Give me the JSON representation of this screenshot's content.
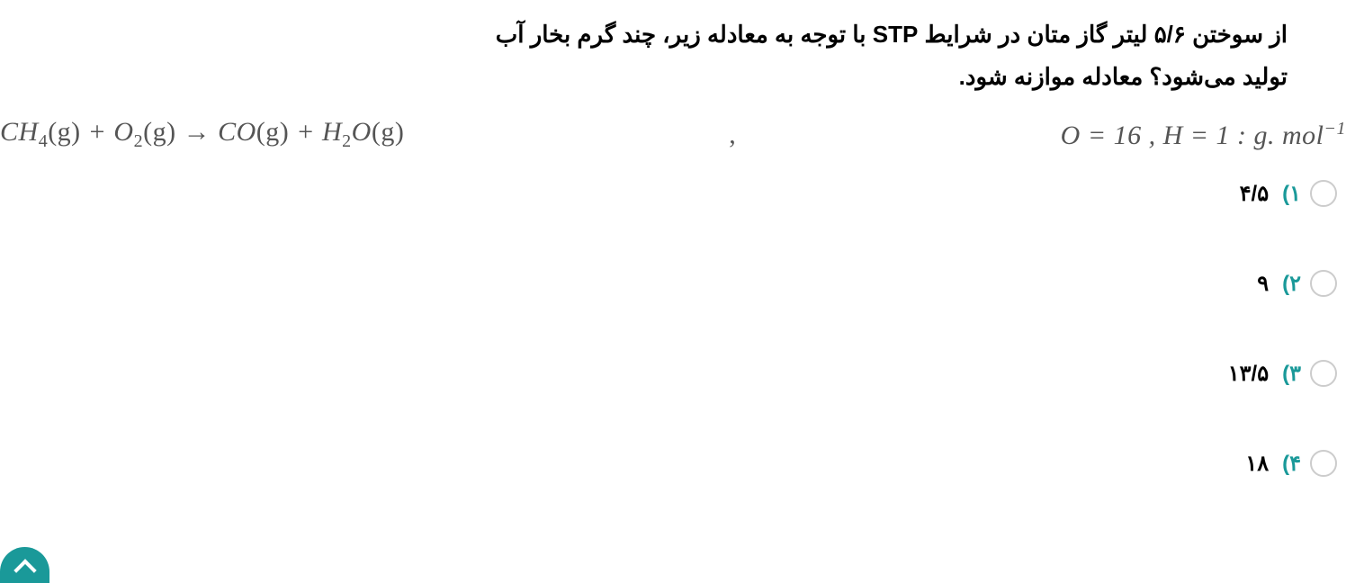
{
  "question": {
    "line1": "از سوختن ۵/۶ لیتر گاز متان در شرایط STP با توجه به معادله زیر، چند گرم بخار آب",
    "line2": "تولید می‌شود؟ معادله موازنه شود."
  },
  "equation": {
    "ch4": "CH",
    "ch4_sub": "4",
    "g1": "(g)",
    "plus": " + ",
    "o2": "O",
    "o2_sub": "2",
    "g2": "(g)",
    "arrow": " → ",
    "co": "CO",
    "g3": "(g)",
    "h2o_h": "H",
    "h2o_sub": "2",
    "h2o_o": "O",
    "g4": "(g)",
    "comma": ",",
    "o_eq": "O = 16 , ",
    "h_eq": "H = 1 : ",
    "unit_g": "g. mol",
    "unit_sup": "−1"
  },
  "options": [
    {
      "number": "۱)",
      "value": "۴/۵"
    },
    {
      "number": "۲)",
      "value": "۹"
    },
    {
      "number": "۳)",
      "value": "۱۳/۵"
    },
    {
      "number": "۴)",
      "value": "۱۸"
    }
  ],
  "colors": {
    "teal": "#1a9999",
    "text": "#000000",
    "equation": "#555555",
    "radio_border": "#cccccc",
    "background": "#ffffff"
  }
}
